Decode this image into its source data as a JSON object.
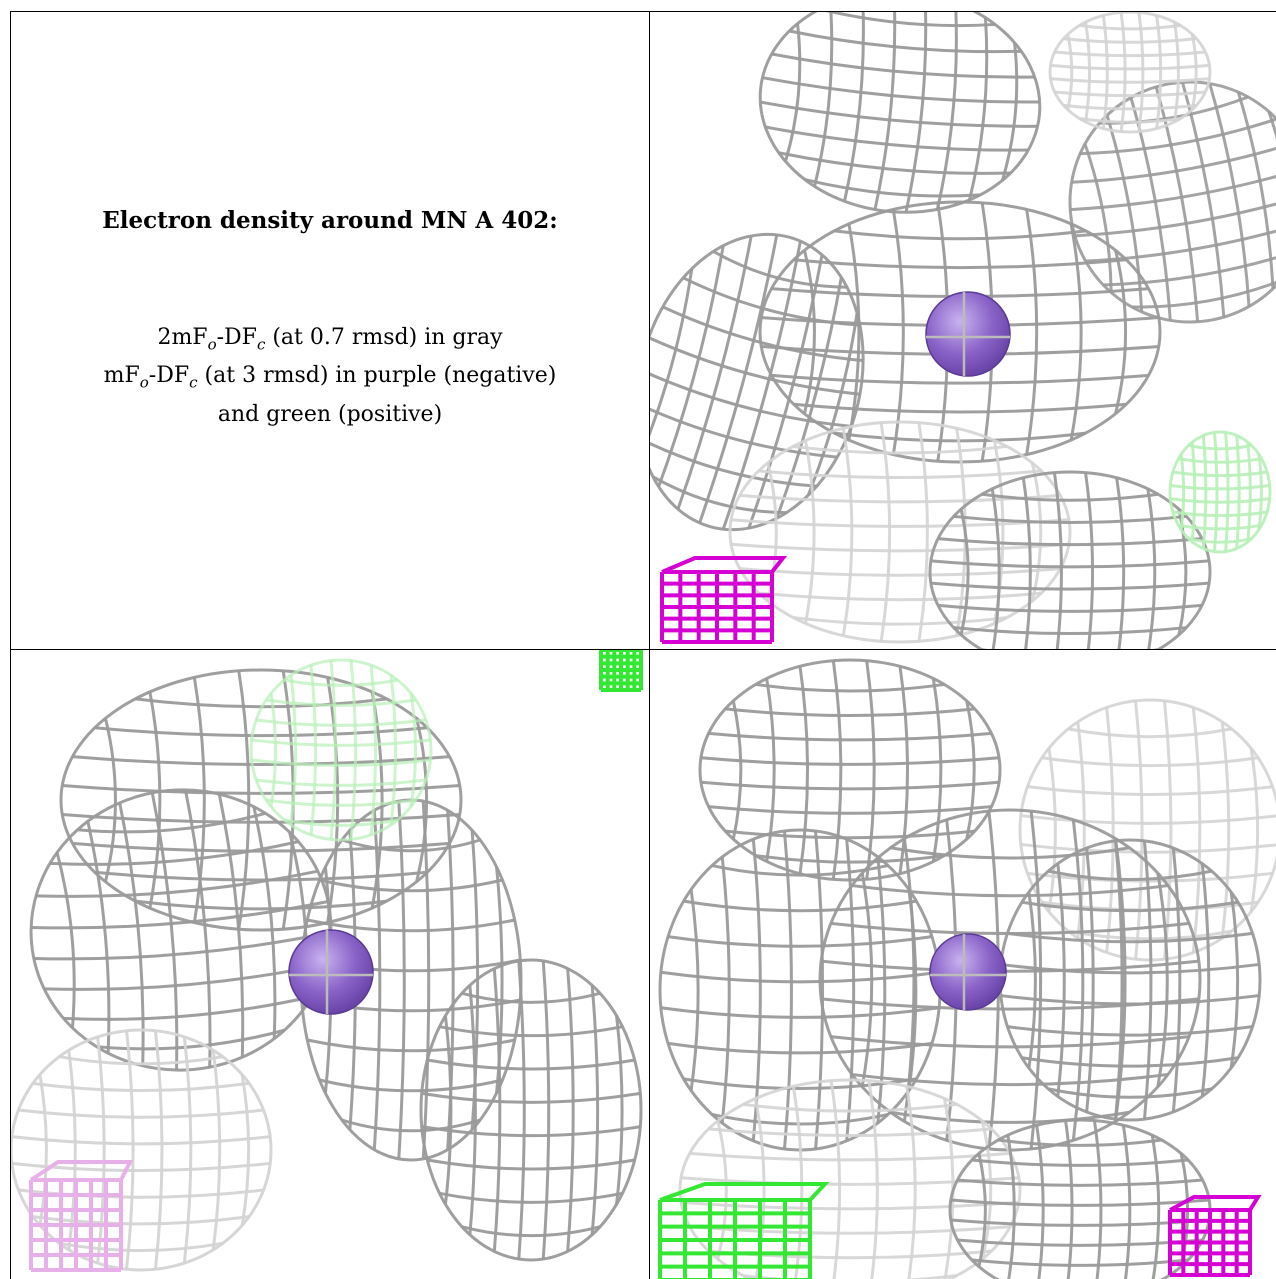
{
  "caption": {
    "title": "Electron density around MN A 402:",
    "line1_prefix": "2mF",
    "line1_sub_o": "o",
    "line1_mid": "-DF",
    "line1_sub_c": "c",
    "line1_suffix": " (at 0.7 rmsd) in gray",
    "line2_prefix": "mF",
    "line2_sub_o": "o",
    "line2_mid": "-DF",
    "line2_sub_c": "c",
    "line2_suffix": " (at 3 rmsd) in purple (negative)",
    "line3": "and green (positive)"
  },
  "colors": {
    "mesh_gray": "#9a9a9a",
    "mesh_light": "#d4d4d4",
    "ion_purple": "#8a63c8",
    "negative_magenta": "#d400d4",
    "positive_green": "#33e833",
    "faint_pink": "#e8b0e8",
    "faint_green": "#b8f0b8"
  },
  "panels": [
    {
      "name": "view-top-right"
    },
    {
      "name": "view-bottom-left"
    },
    {
      "name": "view-bottom-right"
    }
  ]
}
